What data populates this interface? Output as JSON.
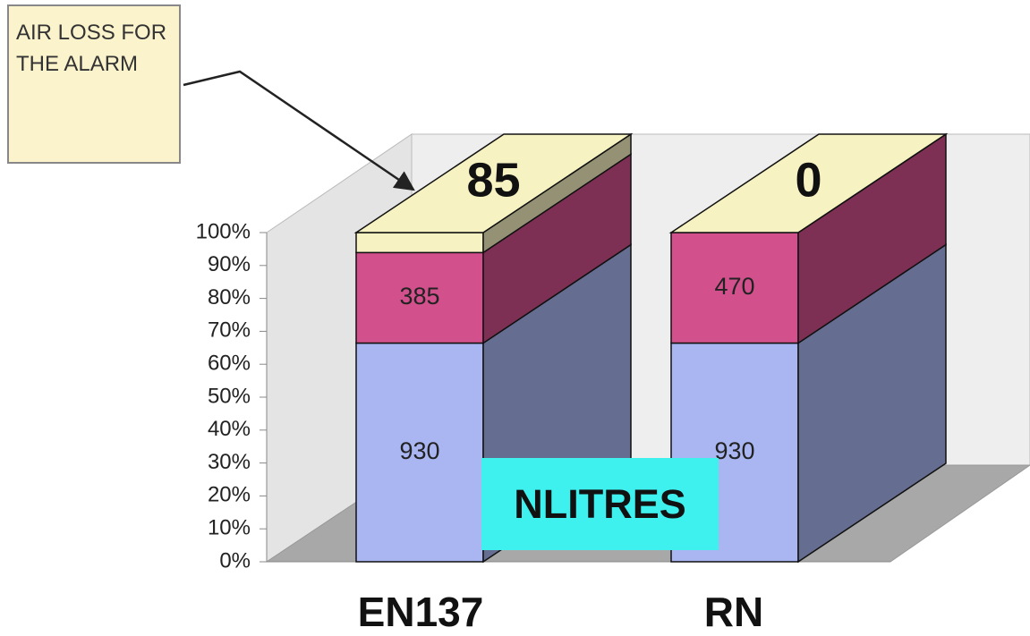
{
  "chart_data": {
    "type": "bar",
    "stacking": "percent",
    "categories": [
      "EN137",
      "RN"
    ],
    "series": [
      {
        "color": "#a9b6f2",
        "values": [
          930,
          930
        ]
      },
      {
        "color": "#d2508c",
        "values": [
          385,
          470
        ]
      },
      {
        "color": "#f6f2c2",
        "values": [
          85,
          0
        ]
      }
    ],
    "ylim": [
      0,
      100
    ],
    "yticks": [
      {
        "value": 0,
        "label": "0%"
      },
      {
        "value": 10,
        "label": "10%"
      },
      {
        "value": 20,
        "label": "20%"
      },
      {
        "value": 30,
        "label": "30%"
      },
      {
        "value": 40,
        "label": "40%"
      },
      {
        "value": 50,
        "label": "50%"
      },
      {
        "value": 60,
        "label": "60%"
      },
      {
        "value": 70,
        "label": "70%"
      },
      {
        "value": 80,
        "label": "80%"
      },
      {
        "value": 90,
        "label": "90%"
      },
      {
        "value": 100,
        "label": "100%"
      }
    ],
    "annotation": "AIR LOSS FOR THE ALARM",
    "unit_label": "NLITRES"
  }
}
